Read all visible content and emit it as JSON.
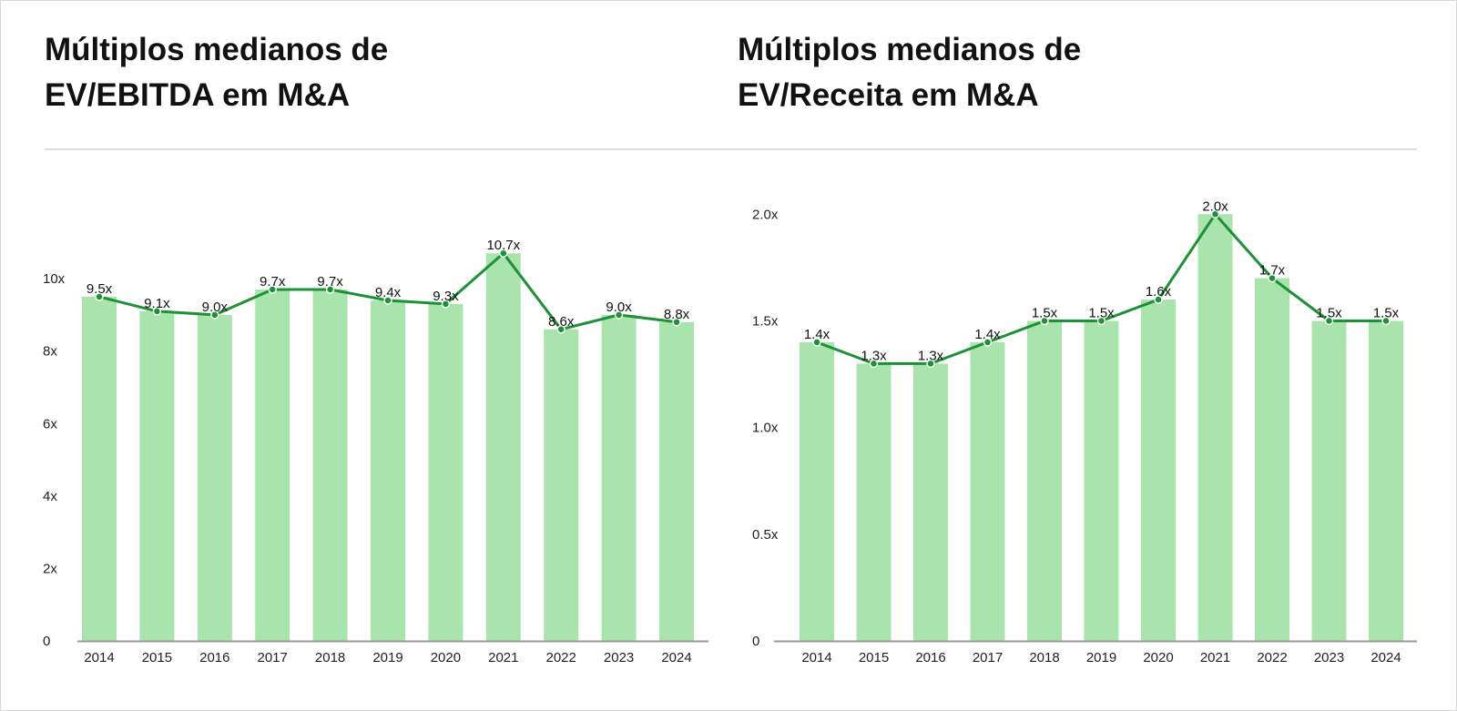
{
  "colors": {
    "bar": "#a9e4ad",
    "line": "#1c9136",
    "marker": "#1c9136",
    "axis": "#9a9a9a",
    "text": "#111111"
  },
  "chart_data": [
    {
      "type": "bar",
      "title_lines": [
        "Múltiplos medianos de",
        "EV/EBITDA em M&A"
      ],
      "categories": [
        "2014",
        "2015",
        "2016",
        "2017",
        "2018",
        "2019",
        "2020",
        "2021",
        "2022",
        "2023",
        "2024"
      ],
      "values": [
        9.5,
        9.1,
        9.0,
        9.7,
        9.7,
        9.4,
        9.3,
        10.7,
        8.6,
        9.0,
        8.8
      ],
      "data_labels": [
        "9.5x",
        "9.1x",
        "9.0x",
        "9.7x",
        "9.7x",
        "9.4x",
        "9.3x",
        "10.7x",
        "8.6x",
        "9.0x",
        "8.8x"
      ],
      "overlay": "line",
      "yticks": [
        0,
        2,
        4,
        6,
        8,
        10
      ],
      "ytick_labels": [
        "0",
        "2x",
        "4x",
        "6x",
        "8x",
        "10x"
      ],
      "ylim": [
        0,
        11
      ],
      "xlabel": "",
      "ylabel": "",
      "grid": false,
      "legend": "none"
    },
    {
      "type": "bar",
      "title_lines": [
        "Múltiplos medianos de",
        "EV/Receita em M&A"
      ],
      "categories": [
        "2014",
        "2015",
        "2016",
        "2017",
        "2018",
        "2019",
        "2020",
        "2021",
        "2022",
        "2023",
        "2024"
      ],
      "values": [
        1.4,
        1.3,
        1.3,
        1.4,
        1.5,
        1.5,
        1.6,
        2.0,
        1.7,
        1.5,
        1.5
      ],
      "data_labels": [
        "1.4x",
        "1.3x",
        "1.3x",
        "1.4x",
        "1.5x",
        "1.5x",
        "1.6x",
        "2.0x",
        "1.7x",
        "1.5x",
        "1.5x"
      ],
      "overlay": "line",
      "yticks": [
        0,
        0.5,
        1.0,
        1.5,
        2.0
      ],
      "ytick_labels": [
        "0",
        "0.5x",
        "1.0x",
        "1.5x",
        "2.0x"
      ],
      "ylim": [
        0,
        2.05
      ],
      "xlabel": "",
      "ylabel": "",
      "grid": false,
      "legend": "none"
    }
  ]
}
